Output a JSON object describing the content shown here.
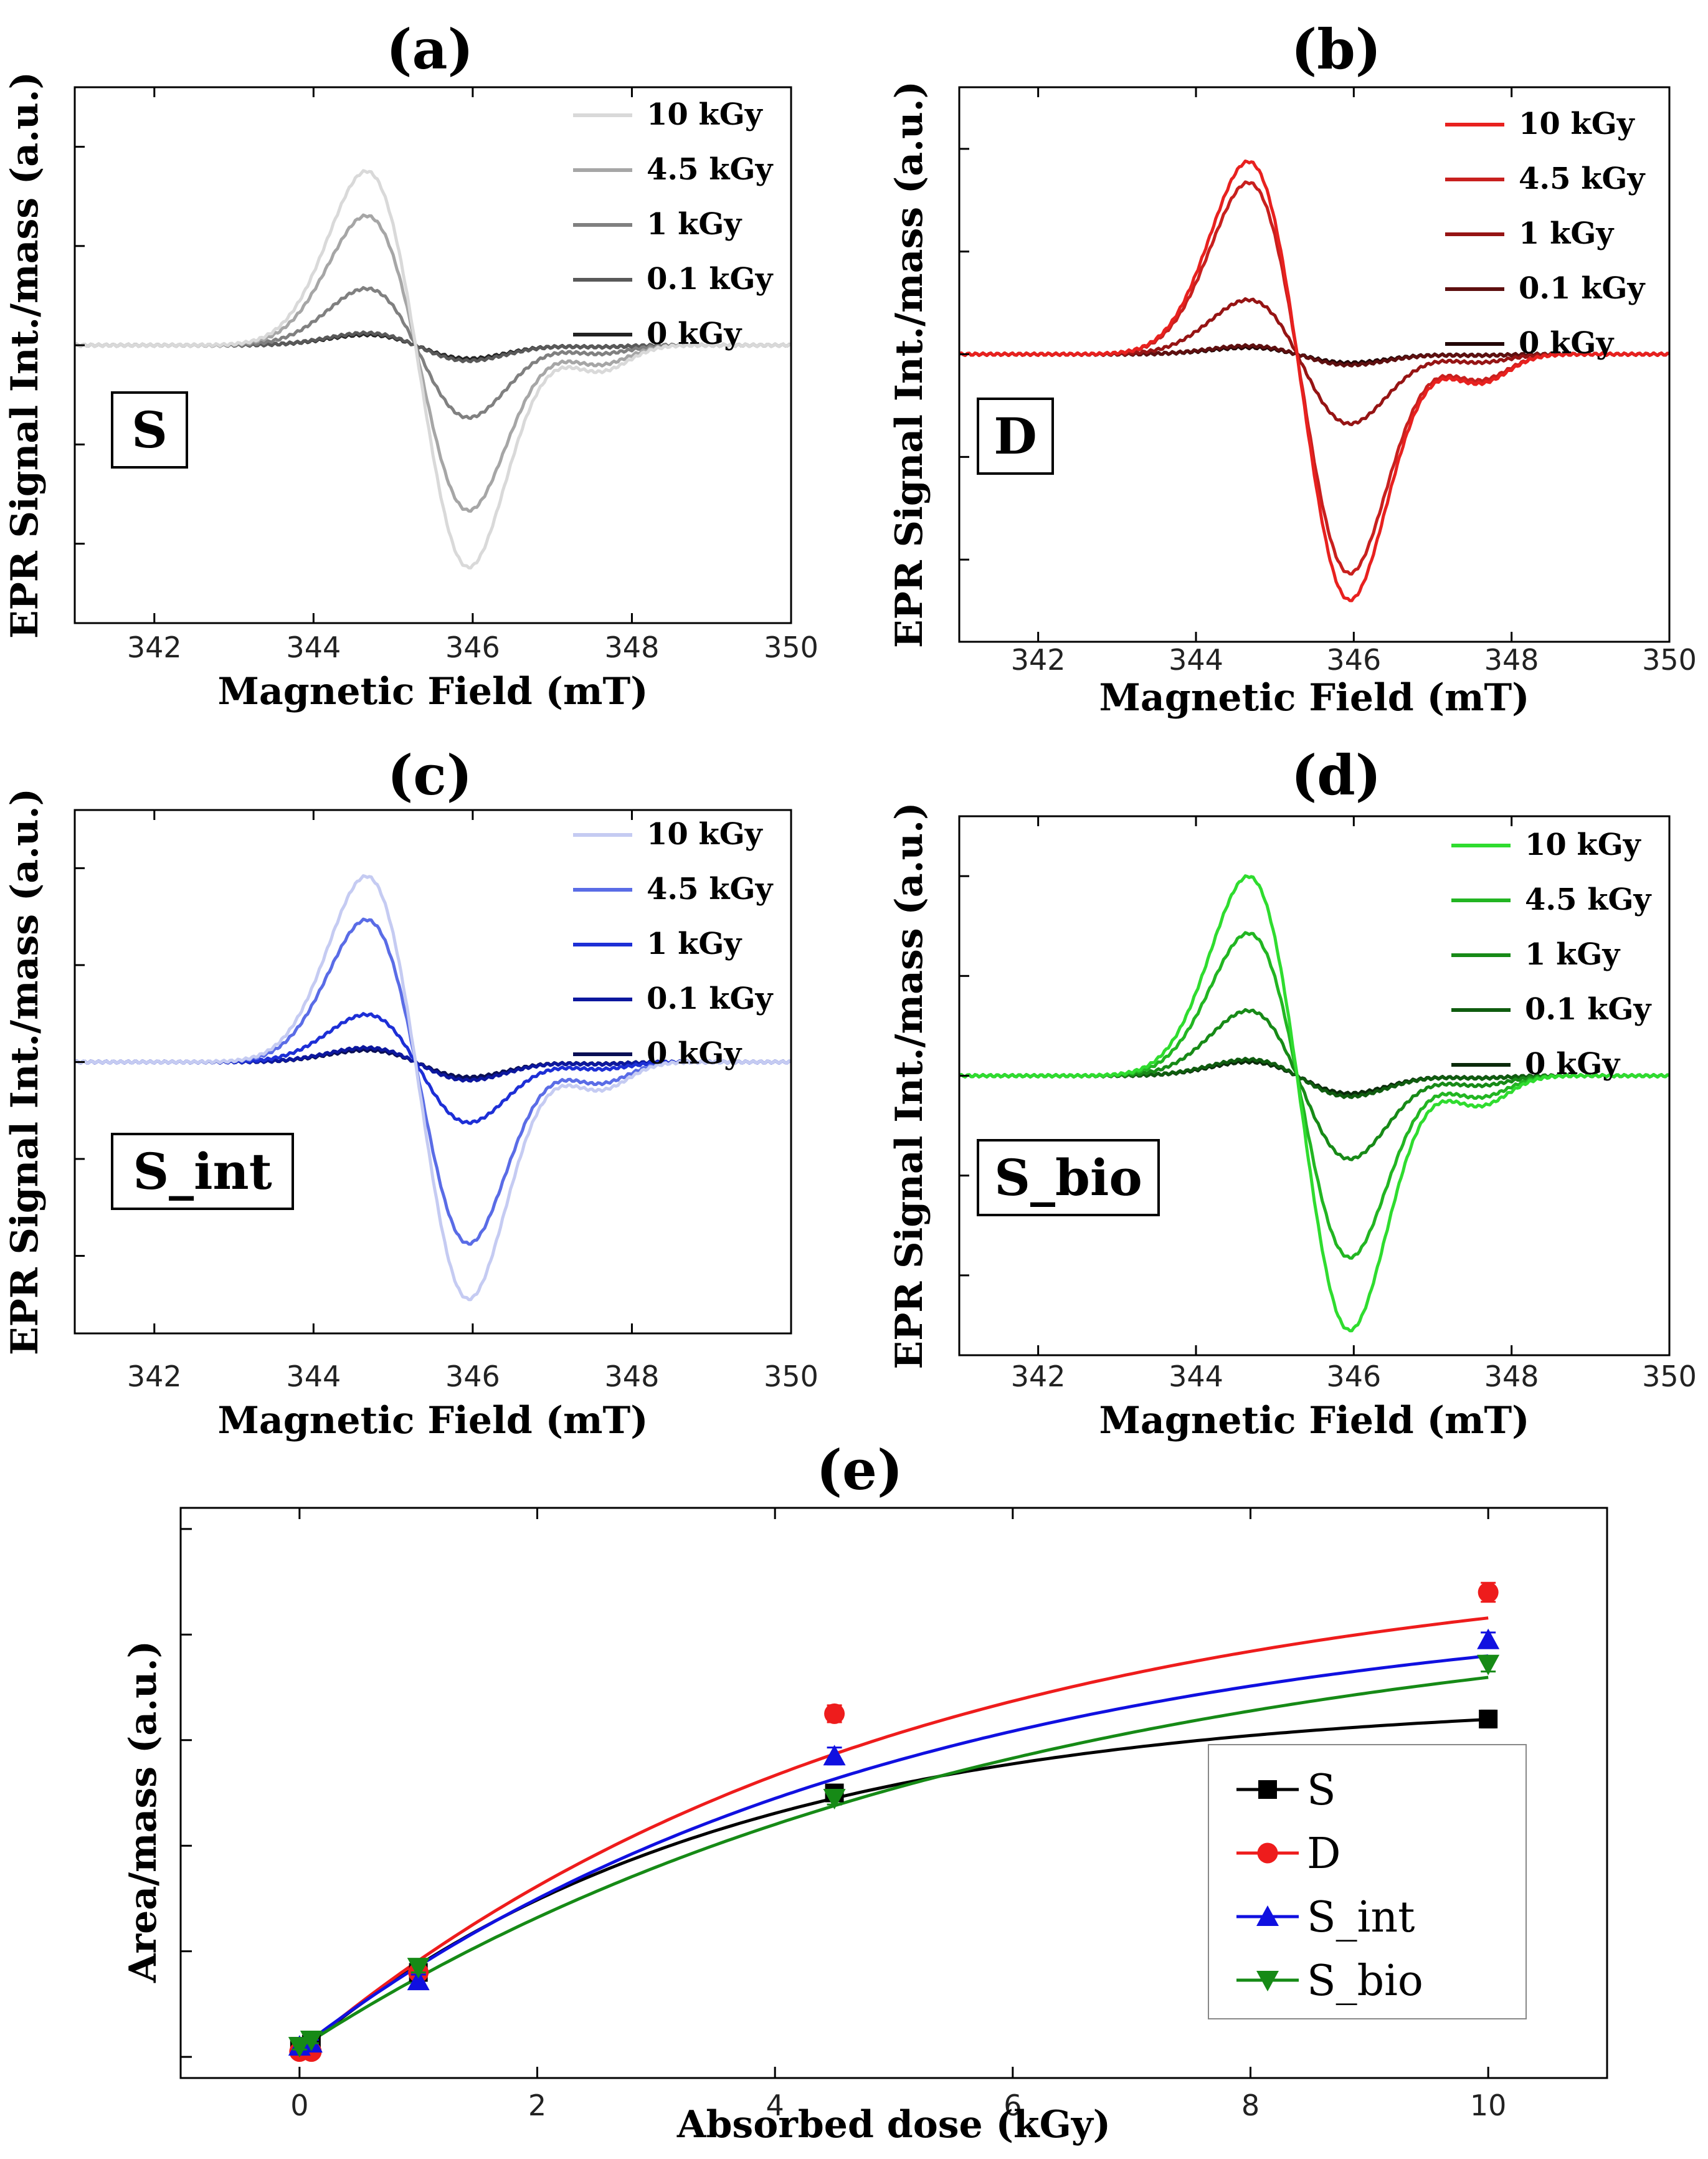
{
  "figure": {
    "spectra_ylabel": "EPR Signal Int./mass (a.u.)",
    "spectra_xlabel": "Magnetic Field (mT)"
  },
  "chart_data": [
    {
      "id": "a",
      "panel_label": "(a)",
      "sample_label": "S",
      "type": "line",
      "title": "",
      "xlabel": "Magnetic Field (mT)",
      "ylabel": "EPR Signal Int./mass (a.u.)",
      "xlim": [
        341,
        350
      ],
      "ylim": [
        -2.8,
        2.6
      ],
      "xticks": [
        342,
        344,
        346,
        348,
        350
      ],
      "xtick_labels": [
        "342",
        "344",
        "346",
        "348",
        "350"
      ],
      "yticks": [
        -2,
        -1,
        0,
        1,
        2
      ],
      "series": [
        {
          "name": "10 kGy",
          "amp": 2.15,
          "color": "#d9d9d9"
        },
        {
          "name": "4.5 kGy",
          "amp": 1.6,
          "color": "#a6a6a6"
        },
        {
          "name": "1 kGy",
          "amp": 0.7,
          "color": "#808080"
        },
        {
          "name": "0.1 kGy",
          "amp": 0.15,
          "color": "#595959"
        },
        {
          "name": "0 kGy",
          "amp": 0.13,
          "color": "#222222"
        }
      ]
    },
    {
      "id": "b",
      "panel_label": "(b)",
      "sample_label": "D",
      "type": "line",
      "title": "",
      "xlabel": "Magnetic Field (mT)",
      "ylabel": "EPR Signal Int./mass (a.u.)",
      "xlim": [
        341,
        350
      ],
      "ylim": [
        -2.8,
        2.6
      ],
      "xticks": [
        342,
        344,
        346,
        348,
        350
      ],
      "xtick_labels": [
        "342",
        "344",
        "346",
        "348",
        "350"
      ],
      "yticks": [
        -2,
        -1,
        0,
        1,
        2
      ],
      "series": [
        {
          "name": "10 kGy",
          "amp": 2.3,
          "color": "#e8211f"
        },
        {
          "name": "4.5 kGy",
          "amp": 2.05,
          "color": "#c8201e"
        },
        {
          "name": "1 kGy",
          "amp": 0.65,
          "color": "#961414"
        },
        {
          "name": "0.1 kGy",
          "amp": 0.1,
          "color": "#5e0f0f"
        },
        {
          "name": "0 kGy",
          "amp": 0.08,
          "color": "#220505"
        }
      ]
    },
    {
      "id": "c",
      "panel_label": "(c)",
      "sample_label": "S_int",
      "type": "line",
      "title": "",
      "xlabel": "Magnetic Field (mT)",
      "ylabel": "EPR Signal Int./mass (a.u.)",
      "xlim": [
        341,
        350
      ],
      "ylim": [
        -2.8,
        2.6
      ],
      "xticks": [
        342,
        344,
        346,
        348,
        350
      ],
      "xtick_labels": [
        "342",
        "344",
        "346",
        "348",
        "350"
      ],
      "yticks": [
        -2,
        -1,
        0,
        1,
        2
      ],
      "series": [
        {
          "name": "10 kGy",
          "amp": 2.35,
          "color": "#c5cbf2"
        },
        {
          "name": "4.5 kGy",
          "amp": 1.8,
          "color": "#5a6ce6"
        },
        {
          "name": "1 kGy",
          "amp": 0.6,
          "color": "#1d2fd6"
        },
        {
          "name": "0.1 kGy",
          "amp": 0.18,
          "color": "#0c179e"
        },
        {
          "name": "0 kGy",
          "amp": 0.15,
          "color": "#0a0f55"
        }
      ]
    },
    {
      "id": "d",
      "panel_label": "(d)",
      "sample_label": "S_bio",
      "type": "line",
      "title": "",
      "xlabel": "Magnetic Field (mT)",
      "ylabel": "EPR Signal Int./mass (a.u.)",
      "xlim": [
        341,
        350
      ],
      "ylim": [
        -2.8,
        2.6
      ],
      "xticks": [
        342,
        344,
        346,
        348,
        350
      ],
      "xtick_labels": [
        "342",
        "344",
        "346",
        "348",
        "350"
      ],
      "yticks": [
        -2,
        -1,
        0,
        1,
        2
      ],
      "series": [
        {
          "name": "10 kGy",
          "amp": 2.45,
          "color": "#2fdc2f"
        },
        {
          "name": "4.5 kGy",
          "amp": 1.75,
          "color": "#22b522"
        },
        {
          "name": "1 kGy",
          "amp": 0.8,
          "color": "#178a17"
        },
        {
          "name": "0.1 kGy",
          "amp": 0.2,
          "color": "#0f5c0f"
        },
        {
          "name": "0 kGy",
          "amp": 0.17,
          "color": "#0a2a0a"
        }
      ]
    },
    {
      "id": "e",
      "panel_label": "(e)",
      "type": "scatter",
      "title": "",
      "xlabel": "Absorbed dose (kGy)",
      "ylabel": "Area/mass (a.u.)",
      "xlim": [
        -1,
        11
      ],
      "ylim": [
        0.8,
        6.2
      ],
      "xticks": [
        0,
        2,
        4,
        6,
        8,
        10
      ],
      "xtick_labels": [
        "0",
        "2",
        "4",
        "6",
        "8",
        "10"
      ],
      "yticks": [
        1,
        2,
        3,
        4,
        5,
        6
      ],
      "x": [
        0,
        0.1,
        1,
        4.5,
        10
      ],
      "series": [
        {
          "name": "S",
          "marker": "square",
          "color": "#000000",
          "y": [
            1.1,
            1.12,
            1.8,
            3.5,
            4.2
          ],
          "err": [
            0.03,
            0.03,
            0.05,
            0.07,
            0.08
          ],
          "fit": {
            "y0": 1.05,
            "A": 3.35,
            "k": 0.28
          }
        },
        {
          "name": "D",
          "marker": "circle",
          "color": "#ee1c1c",
          "y": [
            1.05,
            1.05,
            1.8,
            4.25,
            5.4
          ],
          "err": [
            0.03,
            0.03,
            0.05,
            0.08,
            0.09
          ],
          "fit": {
            "y0": 1.05,
            "A": 4.75,
            "k": 0.2
          }
        },
        {
          "name": "S_int",
          "marker": "triangle-up",
          "color": "#1010e0",
          "y": [
            1.1,
            1.13,
            1.72,
            3.85,
            4.95
          ],
          "err": [
            0.03,
            0.03,
            0.06,
            0.08,
            0.07
          ],
          "fit": {
            "y0": 1.08,
            "A": 4.3,
            "k": 0.2
          }
        },
        {
          "name": "S_bio",
          "marker": "triangle-down",
          "color": "#168a16",
          "y": [
            1.1,
            1.16,
            1.85,
            3.45,
            4.72
          ],
          "err": [
            0.03,
            0.03,
            0.05,
            0.06,
            0.07
          ],
          "fit": {
            "y0": 1.08,
            "A": 4.3,
            "k": 0.17
          }
        }
      ]
    }
  ]
}
